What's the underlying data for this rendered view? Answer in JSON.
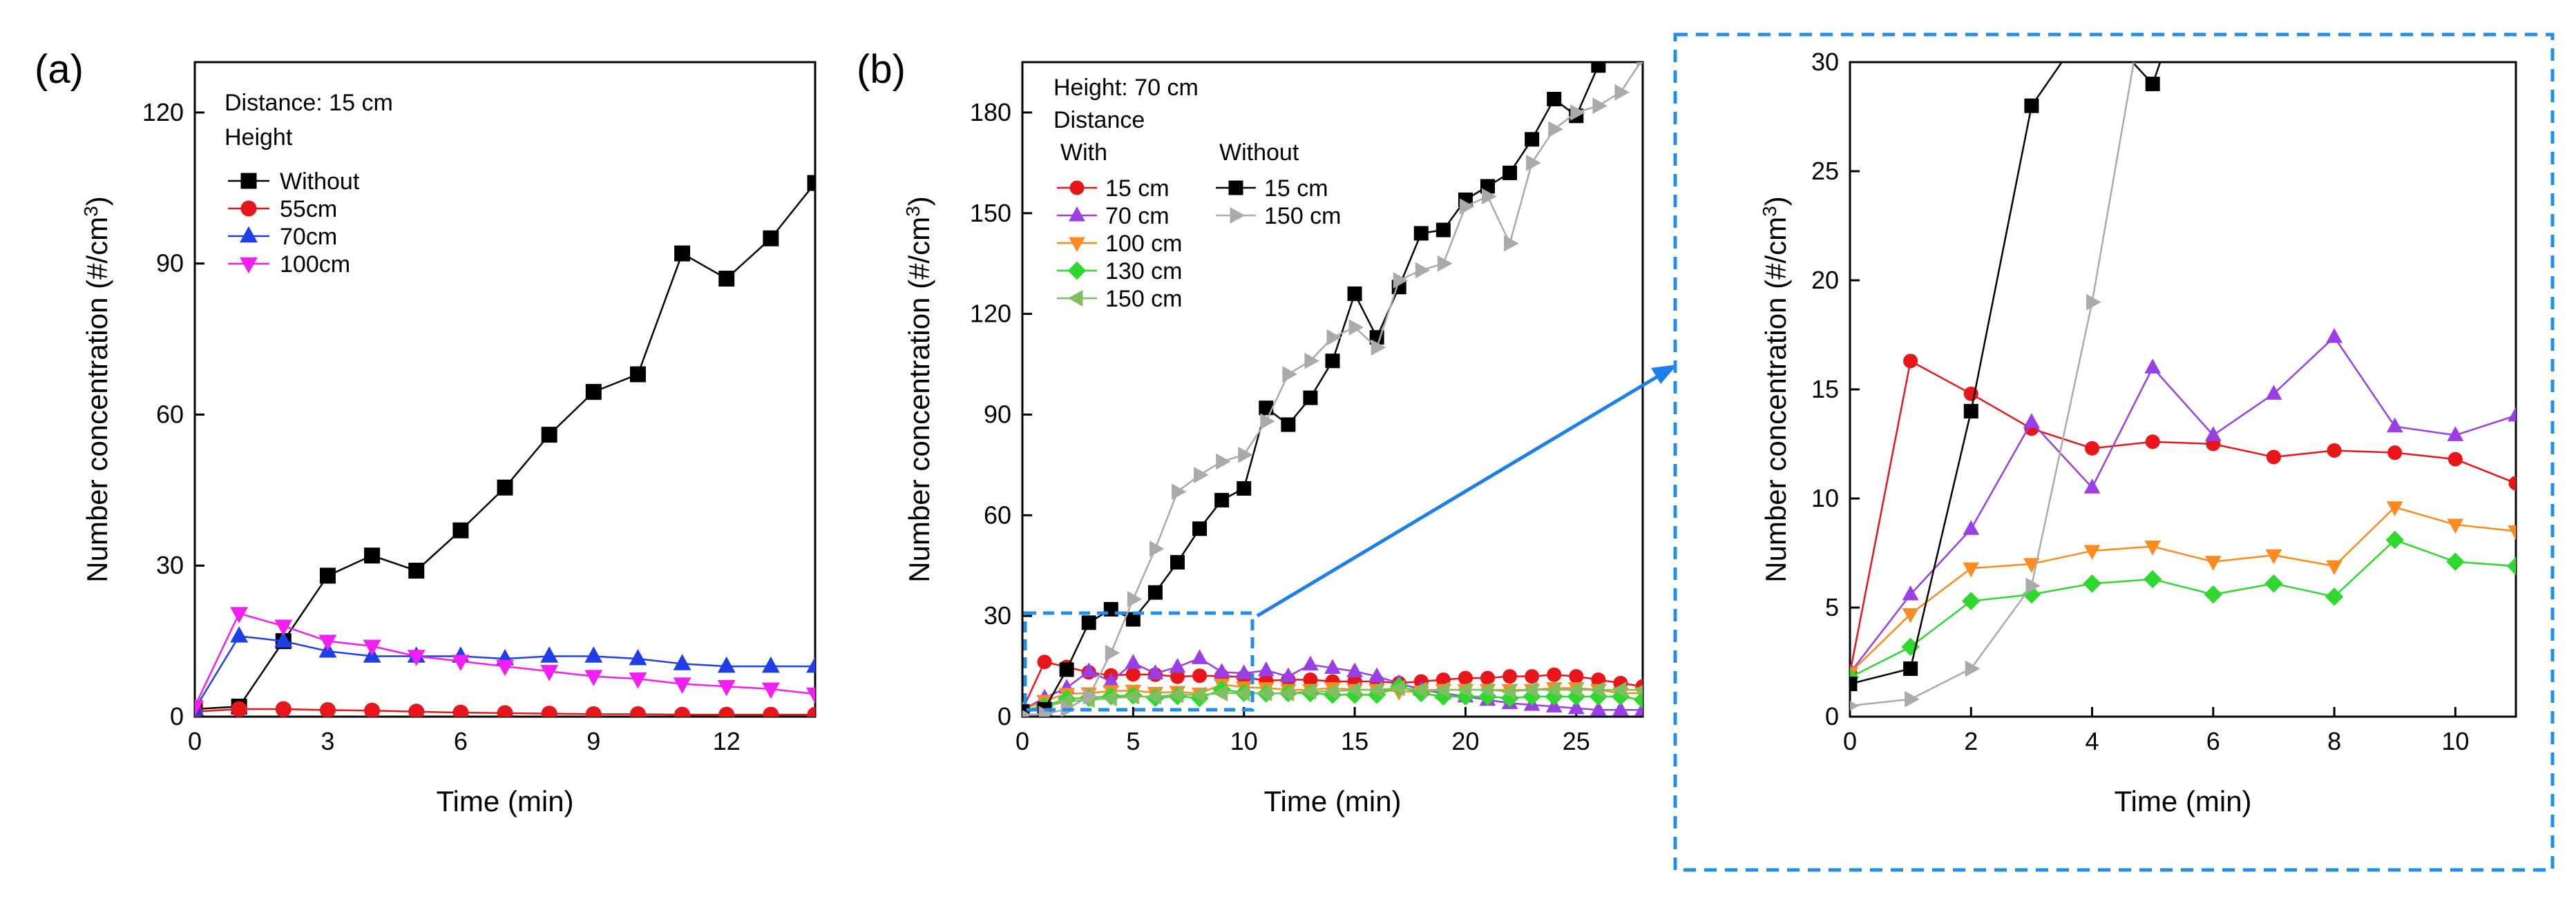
{
  "figure": {
    "panel_a_label": "(a)",
    "panel_b_label": "(b)"
  },
  "colors": {
    "without": "#000000",
    "d15": "#e8161b",
    "d70": "#9a3ee6",
    "d100": "#ff8a1e",
    "d130": "#2ed82e",
    "d150_with": "#7fbf60",
    "w150": "#aaaaaa",
    "h55": "#e8161b",
    "h70": "#1f3ee6",
    "h100": "#f21ef2",
    "inset_box": "#1f8fe8",
    "arrow": "#1f7fe8"
  },
  "chart_data": [
    {
      "id": "a",
      "type": "line",
      "xlabel": "Time (min)",
      "ylabel_main": "Number concentration (#/cm",
      "ylabel_sup": "3",
      "ylabel_close": ")",
      "xlim": [
        0,
        14
      ],
      "ylim": [
        0,
        130
      ],
      "xticks": [
        "0",
        "3",
        "6",
        "9",
        "12"
      ],
      "xtick_values": [
        0,
        3,
        6,
        9,
        12
      ],
      "yticks": [
        "0",
        "30",
        "60",
        "90",
        "120"
      ],
      "ytick_values": [
        0,
        30,
        60,
        90,
        120
      ],
      "legend_title1": "Distance: 15 cm",
      "legend_title2": "Height",
      "series": [
        {
          "name": "Without",
          "color_key": "without",
          "marker": "square",
          "x": [
            0,
            1,
            2,
            3,
            4,
            5,
            6,
            7,
            8,
            9,
            10,
            11,
            12,
            13,
            14
          ],
          "values": [
            1.5,
            2,
            15,
            28,
            32,
            29,
            37,
            45.5,
            56,
            64.5,
            68,
            92,
            87,
            95,
            106
          ]
        },
        {
          "name": "55cm",
          "color_key": "h55",
          "marker": "circle",
          "x": [
            0,
            1,
            2,
            3,
            4,
            5,
            6,
            7,
            8,
            9,
            10,
            11,
            12,
            13,
            14
          ],
          "values": [
            1,
            1.5,
            1.5,
            1.3,
            1.2,
            1,
            0.8,
            0.7,
            0.6,
            0.5,
            0.5,
            0.4,
            0.4,
            0.4,
            0.4
          ]
        },
        {
          "name": "70cm",
          "color_key": "h70",
          "marker": "triangle-up",
          "x": [
            0,
            1,
            2,
            3,
            4,
            5,
            6,
            7,
            8,
            9,
            10,
            11,
            12,
            13,
            14
          ],
          "values": [
            1.5,
            16,
            15,
            13,
            12,
            12,
            12,
            11.5,
            12,
            12,
            11.5,
            10.5,
            10,
            10,
            10
          ]
        },
        {
          "name": "100cm",
          "color_key": "h100",
          "marker": "triangle-down",
          "x": [
            0,
            1,
            2,
            3,
            4,
            5,
            6,
            7,
            8,
            9,
            10,
            11,
            12,
            13,
            14
          ],
          "values": [
            2,
            20.5,
            18,
            15,
            14,
            12,
            11,
            10,
            9,
            8,
            7.5,
            6.5,
            6,
            5.5,
            4.5
          ]
        }
      ]
    },
    {
      "id": "b",
      "type": "line",
      "xlabel": "Time (min)",
      "ylabel_main": "Number concentration (#/cm",
      "ylabel_sup": "3",
      "ylabel_close": ")",
      "xlim": [
        0,
        28
      ],
      "ylim": [
        0,
        195
      ],
      "xticks": [
        "0",
        "5",
        "10",
        "15",
        "20",
        "25"
      ],
      "xtick_values": [
        0,
        5,
        10,
        15,
        20,
        25
      ],
      "yticks": [
        "0",
        "30",
        "60",
        "90",
        "120",
        "150",
        "180"
      ],
      "ytick_values": [
        0,
        30,
        60,
        90,
        120,
        150,
        180
      ],
      "legend_title1": "Height: 70 cm",
      "legend_title2": "Distance",
      "legend_with": "With",
      "legend_without": "Without",
      "series": [
        {
          "name": "15 cm",
          "group": "with",
          "color_key": "d15",
          "marker": "circle",
          "x": [
            0,
            1,
            2,
            3,
            4,
            5,
            6,
            7,
            8,
            9,
            10,
            11,
            12,
            13,
            14,
            15,
            16,
            17,
            18,
            19,
            20,
            21,
            22,
            23,
            24,
            25,
            26,
            27,
            28
          ],
          "values": [
            2,
            16.3,
            14.8,
            13.2,
            12.3,
            12.6,
            12.5,
            11.9,
            12.2,
            12.1,
            11.8,
            10.7,
            11,
            11,
            10.5,
            10.5,
            10.5,
            10,
            10.5,
            11,
            11.5,
            11.5,
            12,
            12,
            12.5,
            12,
            11,
            10,
            9
          ]
        },
        {
          "name": "70 cm",
          "group": "with",
          "color_key": "d70",
          "marker": "triangle-up",
          "x": [
            0,
            1,
            2,
            3,
            4,
            5,
            6,
            7,
            8,
            9,
            10,
            11,
            12,
            13,
            14,
            15,
            16,
            17,
            18,
            19,
            20,
            21,
            22,
            23,
            24,
            25,
            26,
            27,
            28
          ],
          "values": [
            2,
            5.6,
            8.6,
            13.5,
            10.5,
            16,
            12.9,
            14.8,
            17.4,
            13.3,
            12.9,
            13.8,
            12,
            15.5,
            14.5,
            13.5,
            12,
            10,
            8,
            7,
            6,
            5,
            4,
            3.5,
            3,
            2.5,
            2,
            2,
            2
          ]
        },
        {
          "name": "100 cm",
          "group": "with",
          "color_key": "d100",
          "marker": "triangle-down",
          "x": [
            0,
            1,
            2,
            3,
            4,
            5,
            6,
            7,
            8,
            9,
            10,
            11,
            12,
            13,
            14,
            15,
            16,
            17,
            18,
            19,
            20,
            21,
            22,
            23,
            24,
            25,
            26,
            27,
            28
          ],
          "values": [
            2,
            4.7,
            6.8,
            7,
            7.6,
            7.8,
            7.1,
            7.4,
            6.9,
            9.6,
            8.8,
            8.5,
            8,
            8,
            8.5,
            8,
            8,
            7.5,
            7.5,
            8,
            8,
            8,
            8,
            8,
            8.5,
            8.5,
            8,
            7,
            7
          ]
        },
        {
          "name": "130 cm",
          "group": "with",
          "color_key": "d130",
          "marker": "diamond",
          "x": [
            0,
            1,
            2,
            3,
            4,
            5,
            6,
            7,
            8,
            9,
            10,
            11,
            12,
            13,
            14,
            15,
            16,
            17,
            18,
            19,
            20,
            21,
            22,
            23,
            24,
            25,
            26,
            27,
            28
          ],
          "values": [
            1.8,
            3.2,
            5.3,
            5.6,
            6.1,
            6.3,
            5.6,
            6.1,
            5.5,
            8.1,
            7.1,
            6.9,
            7,
            7,
            6.5,
            6.5,
            6.5,
            9,
            7,
            6,
            6,
            6,
            5.5,
            6,
            6,
            6,
            6,
            6,
            5
          ]
        },
        {
          "name": "150 cm",
          "group": "with",
          "color_key": "d150_with",
          "marker": "triangle-left",
          "x": [
            0,
            1,
            2,
            3,
            4,
            5,
            6,
            7,
            8,
            9,
            10,
            11,
            12,
            13,
            14,
            15,
            16,
            17,
            18,
            19,
            20,
            21,
            22,
            23,
            24,
            25,
            26,
            27,
            28
          ],
          "values": [
            1.5,
            3,
            4.5,
            5,
            5.5,
            6,
            6,
            6.5,
            6.5,
            7,
            7,
            7,
            7,
            7.5,
            7.5,
            8,
            8,
            8.5,
            8,
            8,
            8,
            8,
            7.5,
            8,
            8,
            8,
            8,
            8,
            8
          ]
        },
        {
          "name": "15 cm",
          "group": "without",
          "color_key": "without",
          "marker": "square",
          "x": [
            0,
            1,
            2,
            3,
            4,
            5,
            6,
            7,
            8,
            9,
            10,
            11,
            12,
            13,
            14,
            15,
            16,
            17,
            18,
            19,
            20,
            21,
            22,
            23,
            24,
            25,
            26
          ],
          "values": [
            1.5,
            2.2,
            14,
            28,
            32,
            29,
            37,
            46,
            56,
            64.5,
            68,
            92,
            87,
            95,
            106,
            126,
            113,
            128,
            144,
            145,
            154,
            158,
            162,
            172,
            184,
            179,
            194
          ]
        },
        {
          "name": "150 cm",
          "group": "without",
          "color_key": "w150",
          "marker": "triangle-right",
          "x": [
            0,
            1,
            2,
            3,
            4,
            5,
            6,
            7,
            8,
            9,
            10,
            11,
            12,
            13,
            14,
            15,
            16,
            17,
            18,
            19,
            20,
            21,
            22,
            23,
            24,
            25,
            26,
            27,
            28
          ],
          "values": [
            0.5,
            0.8,
            2.2,
            6,
            19,
            35,
            50,
            67,
            72,
            76,
            78,
            88,
            102,
            106,
            113,
            116,
            110,
            130,
            133,
            135,
            152,
            155,
            141,
            165,
            175,
            180,
            182,
            186,
            196
          ]
        }
      ]
    },
    {
      "id": "inset",
      "type": "line",
      "xlabel": "Time (min)",
      "ylabel_main": "Number concentration (#/cm",
      "ylabel_sup": "3",
      "ylabel_close": ")",
      "xlim": [
        0,
        11
      ],
      "ylim": [
        0,
        30
      ],
      "xticks": [
        "0",
        "2",
        "4",
        "6",
        "8",
        "10"
      ],
      "xtick_values": [
        0,
        2,
        4,
        6,
        8,
        10
      ],
      "yticks": [
        "0",
        "5",
        "10",
        "15",
        "20",
        "25",
        "30"
      ],
      "ytick_values": [
        0,
        5,
        10,
        15,
        20,
        25,
        30
      ],
      "series_from": "b"
    }
  ]
}
